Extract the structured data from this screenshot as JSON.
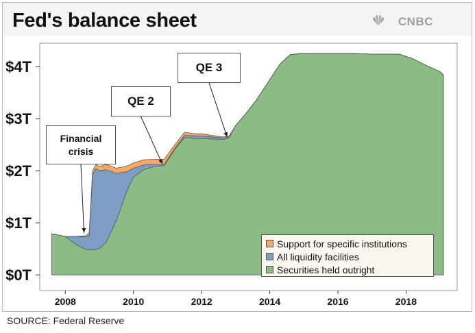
{
  "header": {
    "title": "Fed's balance sheet",
    "brand": "CNBC",
    "brand_icon": "peacock-icon"
  },
  "footer": {
    "source": "SOURCE: Federal Reserve"
  },
  "callouts": [
    {
      "label": "Financial crisis",
      "x": 2008.55,
      "y": 0.78
    },
    {
      "label": "QE 2",
      "x": 2010.85,
      "y": 2.1
    },
    {
      "label": "QE 3",
      "x": 2012.75,
      "y": 2.62
    }
  ],
  "legend": {
    "position": "bottom-right",
    "items": [
      {
        "label": "Support for specific institutions",
        "color": "#f6a864"
      },
      {
        "label": "All liquidity facilities",
        "color": "#7f9dc4"
      },
      {
        "label": "Securities held outright",
        "color": "#8bbc84"
      }
    ]
  },
  "chart_data": {
    "type": "area",
    "stacked": true,
    "title": "Fed's balance sheet",
    "xlabel": "",
    "ylabel": "",
    "xlim": [
      2007.25,
      2019.5
    ],
    "ylim": [
      -0.3,
      4.45
    ],
    "x_ticks": [
      2008,
      2010,
      2012,
      2014,
      2016,
      2018
    ],
    "x_tick_labels": [
      "2008",
      "2010",
      "2012",
      "2014",
      "2016",
      "2018"
    ],
    "y_ticks": [
      0,
      1,
      2,
      3,
      4
    ],
    "y_tick_labels": [
      "$0T",
      "$1T",
      "$2T",
      "$3T",
      "$4T"
    ],
    "grid": false,
    "legend": "bottom-right",
    "x": [
      2007.6,
      2008.0,
      2008.3,
      2008.6,
      2008.7,
      2008.8,
      2008.9,
      2009.0,
      2009.2,
      2009.5,
      2009.8,
      2010.0,
      2010.3,
      2010.6,
      2010.9,
      2011.2,
      2011.5,
      2011.8,
      2012.0,
      2012.3,
      2012.6,
      2012.8,
      2013.0,
      2013.3,
      2013.6,
      2014.0,
      2014.3,
      2014.6,
      2014.9,
      2015.5,
      2016.0,
      2016.5,
      2017.0,
      2017.5,
      2017.8,
      2018.2,
      2018.6,
      2019.0,
      2019.1
    ],
    "series": [
      {
        "name": "Securities held outright",
        "values": [
          0.79,
          0.74,
          0.59,
          0.49,
          0.48,
          0.48,
          0.49,
          0.51,
          0.62,
          1.05,
          1.6,
          1.88,
          2.02,
          2.08,
          2.1,
          2.4,
          2.64,
          2.62,
          2.62,
          2.61,
          2.6,
          2.63,
          2.87,
          3.1,
          3.35,
          3.75,
          4.05,
          4.23,
          4.25,
          4.25,
          4.25,
          4.25,
          4.24,
          4.24,
          4.24,
          4.15,
          4.02,
          3.9,
          3.84
        ]
      },
      {
        "name": "All liquidity facilities",
        "values": [
          0.0,
          0.0,
          0.15,
          0.24,
          0.28,
          1.45,
          1.55,
          1.49,
          1.4,
          0.9,
          0.38,
          0.17,
          0.09,
          0.04,
          0.02,
          0.02,
          0.04,
          0.05,
          0.05,
          0.04,
          0.03,
          0.01,
          0.0,
          0.0,
          0.0,
          0.0,
          0.0,
          0.0,
          0.0,
          0.0,
          0.0,
          0.0,
          0.0,
          0.0,
          0.0,
          0.0,
          0.0,
          0.0,
          0.0
        ]
      },
      {
        "name": "Support for specific institutions",
        "values": [
          0.0,
          0.0,
          0.0,
          0.02,
          0.05,
          0.07,
          0.08,
          0.08,
          0.1,
          0.1,
          0.11,
          0.1,
          0.1,
          0.1,
          0.1,
          0.07,
          0.06,
          0.04,
          0.04,
          0.03,
          0.02,
          0.02,
          0.0,
          0.0,
          0.0,
          0.0,
          0.0,
          0.0,
          0.0,
          0.0,
          0.0,
          0.0,
          0.0,
          0.0,
          0.0,
          0.0,
          0.0,
          0.0,
          0.0
        ]
      }
    ]
  }
}
